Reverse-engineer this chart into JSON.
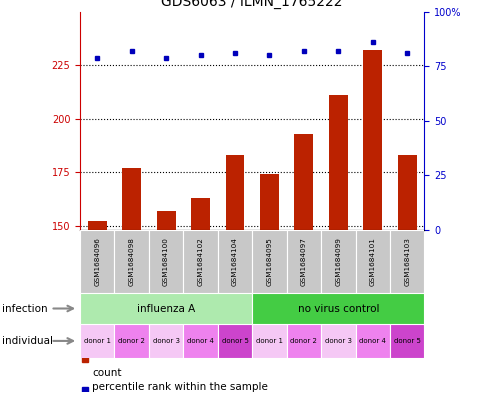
{
  "title": "GDS6063 / ILMN_1765222",
  "samples": [
    "GSM1684096",
    "GSM1684098",
    "GSM1684100",
    "GSM1684102",
    "GSM1684104",
    "GSM1684095",
    "GSM1684097",
    "GSM1684099",
    "GSM1684101",
    "GSM1684103"
  ],
  "counts": [
    152,
    177,
    157,
    163,
    183,
    174,
    193,
    211,
    232,
    183
  ],
  "percentiles": [
    79,
    82,
    79,
    80,
    81,
    80,
    82,
    82,
    86,
    81
  ],
  "ylim_left": [
    148,
    250
  ],
  "ylim_right": [
    0,
    100
  ],
  "yticks_left": [
    150,
    175,
    200,
    225
  ],
  "yticks_right": [
    0,
    25,
    50,
    75,
    100
  ],
  "infection_groups": [
    {
      "label": "influenza A",
      "start": 0,
      "end": 5,
      "color": "#AEEAAE"
    },
    {
      "label": "no virus control",
      "start": 5,
      "end": 10,
      "color": "#44CC44"
    }
  ],
  "individual_labels": [
    "donor 1",
    "donor 2",
    "donor 3",
    "donor 4",
    "donor 5",
    "donor 1",
    "donor 2",
    "donor 3",
    "donor 4",
    "donor 5"
  ],
  "individual_colors": [
    "#F5C8F5",
    "#EE82EE",
    "#F5C8F5",
    "#EE82EE",
    "#CC44CC",
    "#F5C8F5",
    "#EE82EE",
    "#F5C8F5",
    "#EE82EE",
    "#CC44CC"
  ],
  "bar_color": "#BB2200",
  "dot_color": "#0000BB",
  "infection_label": "infection",
  "individual_label": "individual",
  "legend_count_label": "count",
  "legend_percentile_label": "percentile rank within the sample",
  "title_fontsize": 10,
  "tick_fontsize": 7,
  "label_fontsize": 7.5
}
